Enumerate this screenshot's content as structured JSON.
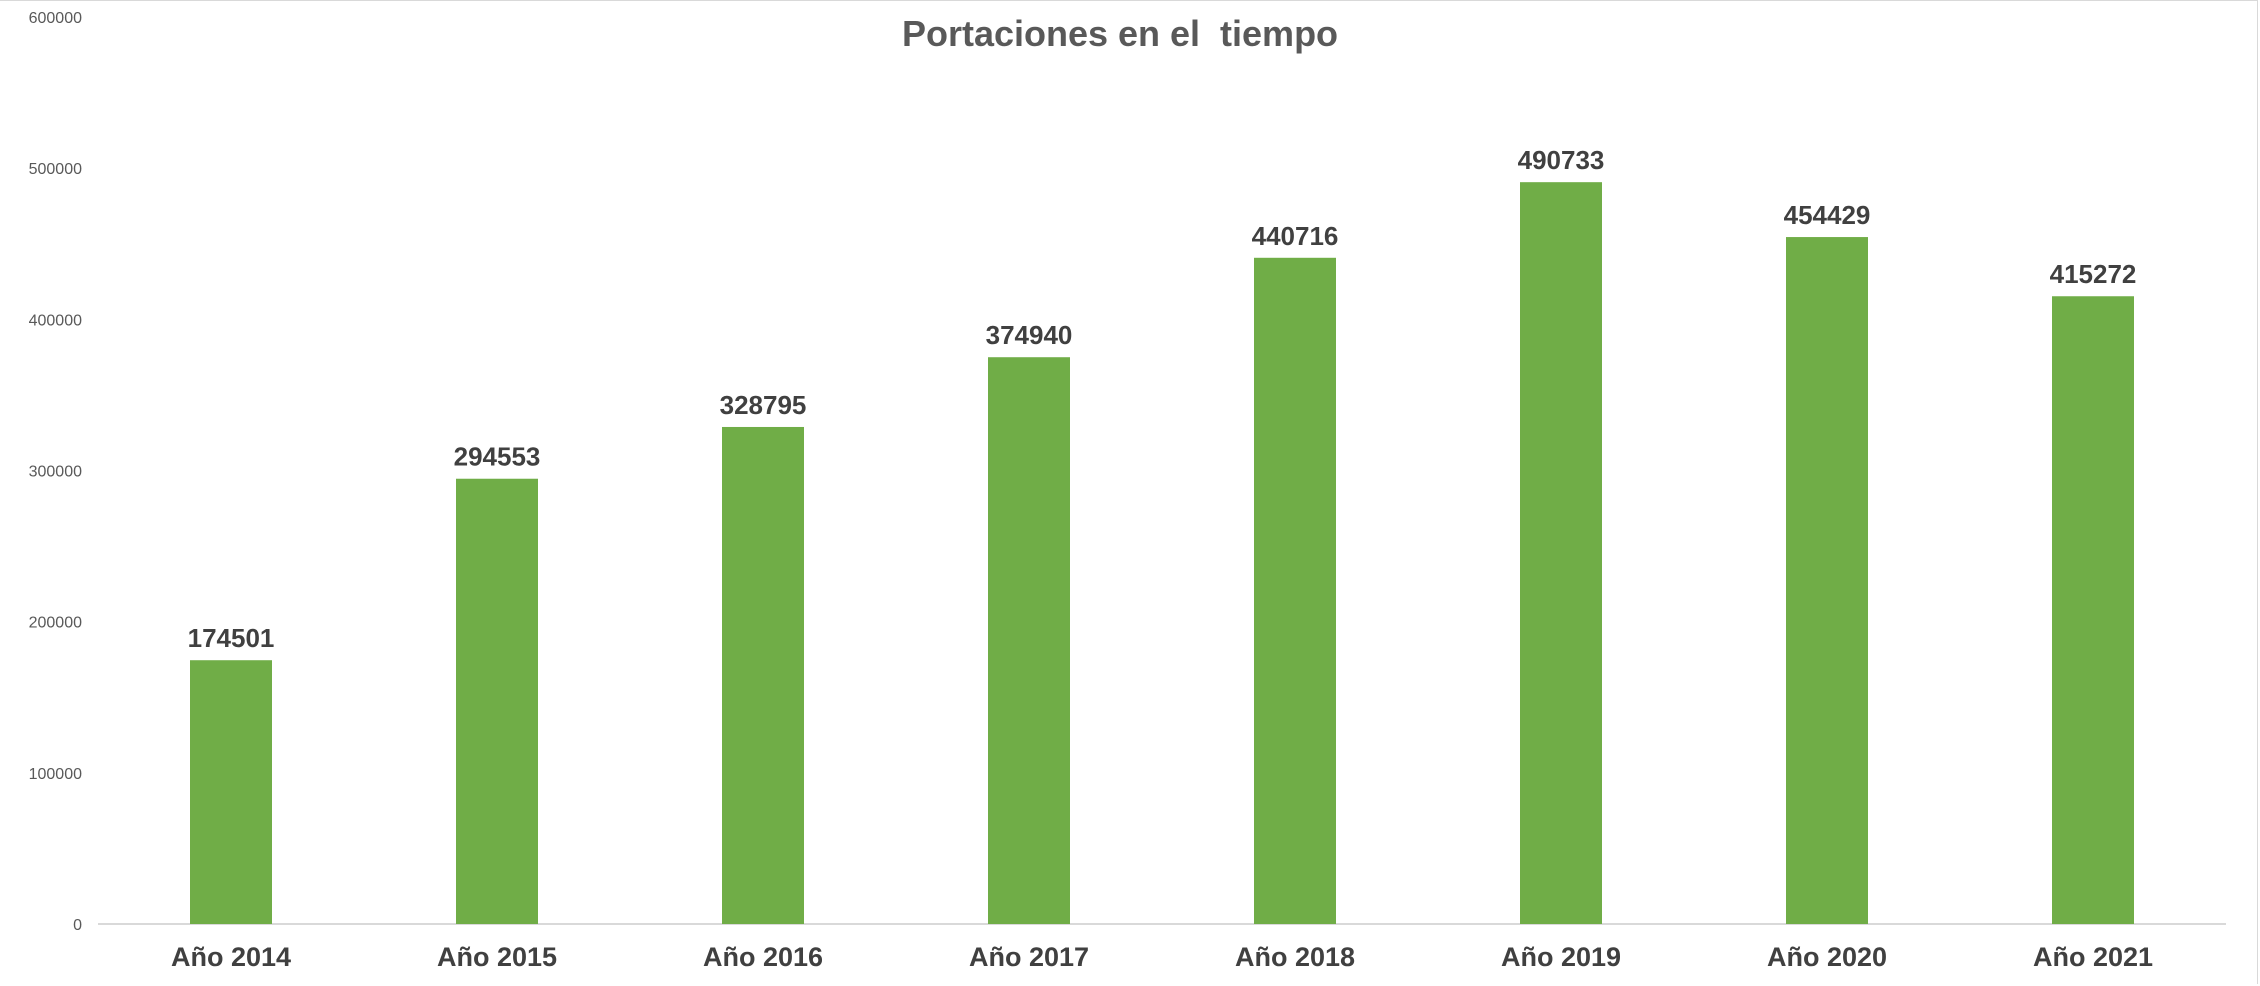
{
  "chart_data": {
    "type": "bar",
    "title": "Portaciones en el  tiempo",
    "xlabel": "",
    "ylabel": "",
    "categories": [
      "Año 2014",
      "Año 2015",
      "Año 2016",
      "Año 2017",
      "Año 2018",
      "Año 2019",
      "Año 2020",
      "Año 2021"
    ],
    "values": [
      174501,
      294553,
      328795,
      374940,
      440716,
      490733,
      454429,
      415272
    ],
    "ylim": [
      0,
      600000
    ],
    "yticks": [
      0,
      100000,
      200000,
      300000,
      400000,
      500000,
      600000
    ],
    "ytick_labels": [
      "0",
      "100000",
      "200000",
      "300000",
      "400000",
      "500000",
      "600000"
    ],
    "data_labels": [
      "174501",
      "294553",
      "328795",
      "374940",
      "440716",
      "490733",
      "454429",
      "415272"
    ],
    "bar_color": "#70AD47",
    "grid": false,
    "legend": "none"
  }
}
